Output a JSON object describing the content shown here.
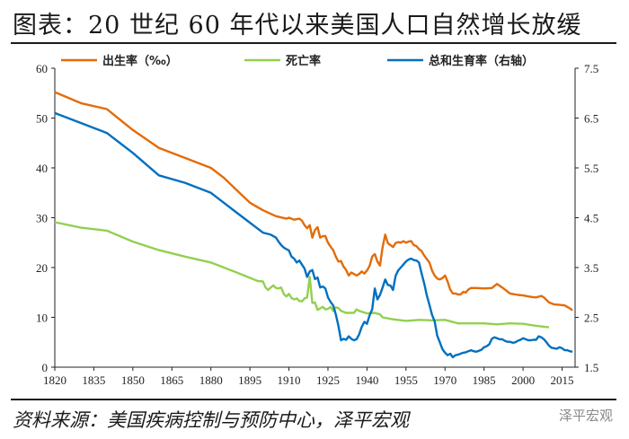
{
  "title": "图表：20 世纪 60 年代以来美国人口自然增长放缓",
  "source": "资料来源：美国疾病控制与预防中心，泽平宏观",
  "watermark": "泽平宏观",
  "colors": {
    "birth": "#E36C09",
    "death": "#92D050",
    "tfr": "#0070C0"
  },
  "chart_data": {
    "type": "line",
    "title": "图表：20 世纪 60 年代以来美国人口自然增长放缓",
    "xlim": [
      1820,
      2020
    ],
    "ylim_left": [
      0,
      60
    ],
    "ylim_right": [
      1.5,
      7.5
    ],
    "x_ticks": [
      "1820",
      "1835",
      "1850",
      "1865",
      "1880",
      "1895",
      "1910",
      "1925",
      "1940",
      "1955",
      "1970",
      "1985",
      "2000",
      "2015"
    ],
    "y_left_ticks": [
      "0",
      "10",
      "20",
      "30",
      "40",
      "50",
      "60"
    ],
    "y_right_ticks": [
      "1.5",
      "2.5",
      "3.5",
      "4.5",
      "5.5",
      "6.5",
      "7.5"
    ],
    "legend_position": "top",
    "series": [
      {
        "name": "出生率（‰）",
        "axis": "left",
        "color": "#E36C09",
        "points": [
          [
            1820,
            55.2
          ],
          [
            1830,
            53
          ],
          [
            1840,
            51.8
          ],
          [
            1850,
            47.6
          ],
          [
            1860,
            44
          ],
          [
            1870,
            42
          ],
          [
            1880,
            40
          ],
          [
            1885,
            38
          ],
          [
            1890,
            35.5
          ],
          [
            1895,
            33
          ],
          [
            1900,
            31.5
          ],
          [
            1905,
            30.3
          ],
          [
            1909,
            29.8
          ],
          [
            1910,
            30
          ],
          [
            1912,
            29.6
          ],
          [
            1914,
            29.8
          ],
          [
            1915,
            29.4
          ],
          [
            1916,
            28.5
          ],
          [
            1917,
            27.9
          ],
          [
            1918,
            28.5
          ],
          [
            1919,
            26
          ],
          [
            1920,
            27.5
          ],
          [
            1921,
            28.1
          ],
          [
            1922,
            26
          ],
          [
            1923,
            26.3
          ],
          [
            1924,
            26.3
          ],
          [
            1925,
            25
          ],
          [
            1926,
            24.2
          ],
          [
            1927,
            23.5
          ],
          [
            1928,
            22.2
          ],
          [
            1929,
            21.2
          ],
          [
            1930,
            21.3
          ],
          [
            1931,
            20.2
          ],
          [
            1932,
            19.5
          ],
          [
            1933,
            18.4
          ],
          [
            1934,
            19
          ],
          [
            1935,
            18.7
          ],
          [
            1936,
            18.4
          ],
          [
            1937,
            18.7
          ],
          [
            1938,
            19.2
          ],
          [
            1939,
            18.8
          ],
          [
            1940,
            19.4
          ],
          [
            1941,
            20.3
          ],
          [
            1942,
            22.2
          ],
          [
            1943,
            22.7
          ],
          [
            1944,
            21.2
          ],
          [
            1945,
            20.4
          ],
          [
            1946,
            24.1
          ],
          [
            1947,
            26.6
          ],
          [
            1948,
            24.9
          ],
          [
            1949,
            24.5
          ],
          [
            1950,
            24.1
          ],
          [
            1951,
            24.9
          ],
          [
            1952,
            25.1
          ],
          [
            1953,
            25
          ],
          [
            1954,
            25.3
          ],
          [
            1955,
            25
          ],
          [
            1956,
            25.2
          ],
          [
            1957,
            25.3
          ],
          [
            1958,
            24.5
          ],
          [
            1959,
            24.3
          ],
          [
            1960,
            23.7
          ],
          [
            1961,
            23.3
          ],
          [
            1962,
            22.4
          ],
          [
            1963,
            21.7
          ],
          [
            1964,
            21
          ],
          [
            1965,
            19.4
          ],
          [
            1966,
            18.4
          ],
          [
            1967,
            17.8
          ],
          [
            1968,
            17.6
          ],
          [
            1969,
            17.9
          ],
          [
            1970,
            18.4
          ],
          [
            1971,
            17.2
          ],
          [
            1972,
            15.6
          ],
          [
            1973,
            14.8
          ],
          [
            1974,
            14.8
          ],
          [
            1975,
            14.6
          ],
          [
            1976,
            14.6
          ],
          [
            1977,
            15.1
          ],
          [
            1978,
            15
          ],
          [
            1979,
            15.6
          ],
          [
            1980,
            15.9
          ],
          [
            1982,
            15.9
          ],
          [
            1985,
            15.8
          ],
          [
            1988,
            15.9
          ],
          [
            1990,
            16.7
          ],
          [
            1992,
            16
          ],
          [
            1995,
            14.8
          ],
          [
            1998,
            14.5
          ],
          [
            2000,
            14.4
          ],
          [
            2003,
            14.1
          ],
          [
            2005,
            14
          ],
          [
            2007,
            14.3
          ],
          [
            2008,
            14
          ],
          [
            2010,
            13
          ],
          [
            2012,
            12.6
          ],
          [
            2014,
            12.5
          ],
          [
            2016,
            12.4
          ],
          [
            2018,
            11.8
          ],
          [
            2019,
            11.4
          ]
        ]
      },
      {
        "name": "死亡率",
        "axis": "left",
        "color": "#92D050",
        "points": [
          [
            1820,
            29.1
          ],
          [
            1830,
            28
          ],
          [
            1840,
            27.4
          ],
          [
            1850,
            25.2
          ],
          [
            1860,
            23.5
          ],
          [
            1870,
            22.2
          ],
          [
            1880,
            21
          ],
          [
            1890,
            19
          ],
          [
            1898,
            17.3
          ],
          [
            1900,
            17.2
          ],
          [
            1901,
            16
          ],
          [
            1902,
            15.5
          ],
          [
            1903,
            16
          ],
          [
            1904,
            16.4
          ],
          [
            1905,
            15.9
          ],
          [
            1906,
            15.8
          ],
          [
            1907,
            16
          ],
          [
            1908,
            14.7
          ],
          [
            1909,
            14.2
          ],
          [
            1910,
            14.7
          ],
          [
            1911,
            13.9
          ],
          [
            1912,
            13.6
          ],
          [
            1913,
            13.8
          ],
          [
            1914,
            13.3
          ],
          [
            1915,
            13.2
          ],
          [
            1916,
            13.8
          ],
          [
            1917,
            14
          ],
          [
            1918,
            18.1
          ],
          [
            1919,
            12.9
          ],
          [
            1920,
            13
          ],
          [
            1921,
            11.5
          ],
          [
            1922,
            11.8
          ],
          [
            1923,
            12.1
          ],
          [
            1924,
            11.6
          ],
          [
            1925,
            11.7
          ],
          [
            1926,
            12.1
          ],
          [
            1927,
            11.3
          ],
          [
            1928,
            12
          ],
          [
            1929,
            11.9
          ],
          [
            1930,
            11.3
          ],
          [
            1932,
            10.9
          ],
          [
            1935,
            10.9
          ],
          [
            1936,
            11.6
          ],
          [
            1937,
            11.3
          ],
          [
            1940,
            10.8
          ],
          [
            1943,
            10.9
          ],
          [
            1945,
            10.6
          ],
          [
            1946,
            10
          ],
          [
            1950,
            9.6
          ],
          [
            1955,
            9.3
          ],
          [
            1960,
            9.5
          ],
          [
            1965,
            9.4
          ],
          [
            1970,
            9.5
          ],
          [
            1975,
            8.8
          ],
          [
            1980,
            8.8
          ],
          [
            1985,
            8.8
          ],
          [
            1990,
            8.6
          ],
          [
            1995,
            8.8
          ],
          [
            2000,
            8.7
          ],
          [
            2005,
            8.3
          ],
          [
            2010,
            8
          ]
        ]
      },
      {
        "name": "总和生育率（右轴）",
        "axis": "right",
        "color": "#0070C0",
        "points": [
          [
            1820,
            6.6
          ],
          [
            1830,
            6.4
          ],
          [
            1840,
            6.2
          ],
          [
            1850,
            5.8
          ],
          [
            1860,
            5.35
          ],
          [
            1870,
            5.2
          ],
          [
            1880,
            5
          ],
          [
            1890,
            4.6
          ],
          [
            1900,
            4.2
          ],
          [
            1903,
            4.16
          ],
          [
            1905,
            4.1
          ],
          [
            1906,
            4.02
          ],
          [
            1907,
            3.95
          ],
          [
            1908,
            3.9
          ],
          [
            1909,
            3.87
          ],
          [
            1910,
            3.84
          ],
          [
            1911,
            3.72
          ],
          [
            1912,
            3.68
          ],
          [
            1913,
            3.6
          ],
          [
            1914,
            3.64
          ],
          [
            1915,
            3.56
          ],
          [
            1916,
            3.48
          ],
          [
            1917,
            3.31
          ],
          [
            1918,
            3.42
          ],
          [
            1919,
            3.45
          ],
          [
            1920,
            3.27
          ],
          [
            1921,
            3.3
          ],
          [
            1922,
            3.1
          ],
          [
            1923,
            3.12
          ],
          [
            1924,
            3.08
          ],
          [
            1925,
            2.9
          ],
          [
            1926,
            2.81
          ],
          [
            1927,
            2.74
          ],
          [
            1928,
            2.56
          ],
          [
            1929,
            2.33
          ],
          [
            1930,
            2.04
          ],
          [
            1931,
            2.07
          ],
          [
            1932,
            2.05
          ],
          [
            1933,
            2.12
          ],
          [
            1934,
            2.07
          ],
          [
            1935,
            2.04
          ],
          [
            1936,
            2.06
          ],
          [
            1937,
            2.16
          ],
          [
            1938,
            2.31
          ],
          [
            1939,
            2.41
          ],
          [
            1940,
            2.37
          ],
          [
            1941,
            2.54
          ],
          [
            1942,
            2.66
          ],
          [
            1943,
            3.08
          ],
          [
            1944,
            2.86
          ],
          [
            1945,
            2.95
          ],
          [
            1946,
            3.1
          ],
          [
            1947,
            3.26
          ],
          [
            1948,
            3.15
          ],
          [
            1949,
            3.14
          ],
          [
            1950,
            3.05
          ],
          [
            1951,
            3.33
          ],
          [
            1952,
            3.44
          ],
          [
            1953,
            3.5
          ],
          [
            1954,
            3.56
          ],
          [
            1955,
            3.62
          ],
          [
            1956,
            3.66
          ],
          [
            1957,
            3.68
          ],
          [
            1958,
            3.65
          ],
          [
            1959,
            3.64
          ],
          [
            1960,
            3.6
          ],
          [
            1961,
            3.38
          ],
          [
            1962,
            3.18
          ],
          [
            1963,
            2.94
          ],
          [
            1964,
            2.75
          ],
          [
            1965,
            2.55
          ],
          [
            1966,
            2.42
          ],
          [
            1967,
            2.13
          ],
          [
            1968,
            2
          ],
          [
            1969,
            1.86
          ],
          [
            1970,
            1.79
          ],
          [
            1971,
            1.74
          ],
          [
            1972,
            1.77
          ],
          [
            1973,
            1.7
          ],
          [
            1974,
            1.74
          ],
          [
            1975,
            1.75
          ],
          [
            1976,
            1.77
          ],
          [
            1977,
            1.79
          ],
          [
            1978,
            1.8
          ],
          [
            1979,
            1.82
          ],
          [
            1980,
            1.84
          ],
          [
            1981,
            1.82
          ],
          [
            1982,
            1.81
          ],
          [
            1983,
            1.83
          ],
          [
            1984,
            1.85
          ],
          [
            1985,
            1.9
          ],
          [
            1986,
            1.92
          ],
          [
            1987,
            1.96
          ],
          [
            1988,
            2.07
          ],
          [
            1989,
            2.1
          ],
          [
            1990,
            2.08
          ],
          [
            1991,
            2.06
          ],
          [
            1992,
            2.06
          ],
          [
            1993,
            2.03
          ],
          [
            1994,
            2.01
          ],
          [
            1995,
            2.01
          ],
          [
            1996,
            1.99
          ],
          [
            1997,
            2
          ],
          [
            1998,
            2.03
          ],
          [
            1999,
            2.05
          ],
          [
            2000,
            2.08
          ],
          [
            2001,
            2.06
          ],
          [
            2002,
            2.04
          ],
          [
            2003,
            2.04
          ],
          [
            2004,
            2.05
          ],
          [
            2005,
            2.05
          ],
          [
            2006,
            2.12
          ],
          [
            2007,
            2.1
          ],
          [
            2008,
            2.06
          ],
          [
            2009,
            2
          ],
          [
            2010,
            1.93
          ],
          [
            2011,
            1.89
          ],
          [
            2012,
            1.88
          ],
          [
            2013,
            1.87
          ],
          [
            2014,
            1.9
          ],
          [
            2015,
            1.88
          ],
          [
            2016,
            1.84
          ],
          [
            2017,
            1.84
          ],
          [
            2018,
            1.82
          ],
          [
            2019,
            1.81
          ]
        ]
      }
    ]
  }
}
